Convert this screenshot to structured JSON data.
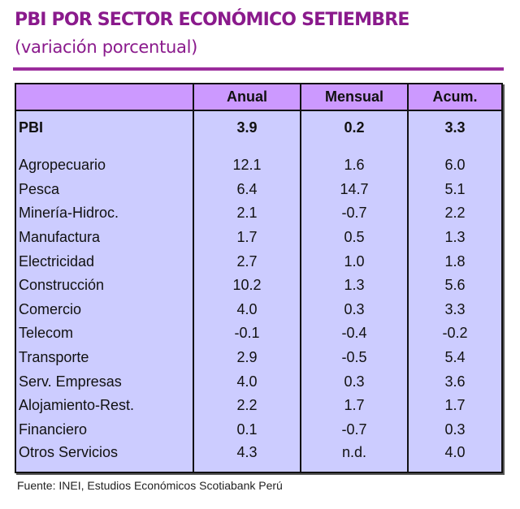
{
  "title": "PBI POR SECTOR ECONÓMICO SETIEMBRE",
  "subtitle": "(variación porcentual)",
  "table": {
    "headers": [
      "",
      "Anual",
      "Mensual",
      "Acum."
    ],
    "total": {
      "label": "PBI",
      "values": [
        "3.9",
        "0.2",
        "3.3"
      ]
    },
    "rows": [
      {
        "label": "Agropecuario",
        "values": [
          "12.1",
          "1.6",
          "6.0"
        ]
      },
      {
        "label": "Pesca",
        "values": [
          "6.4",
          "14.7",
          "5.1"
        ]
      },
      {
        "label": "Minería-Hidroc.",
        "values": [
          "2.1",
          "-0.7",
          "2.2"
        ]
      },
      {
        "label": "Manufactura",
        "values": [
          "1.7",
          "0.5",
          "1.3"
        ]
      },
      {
        "label": "Electricidad",
        "values": [
          "2.7",
          "1.0",
          "1.8"
        ]
      },
      {
        "label": "Construcción",
        "values": [
          "10.2",
          "1.3",
          "5.6"
        ]
      },
      {
        "label": "Comercio",
        "values": [
          "4.0",
          "0.3",
          "3.3"
        ]
      },
      {
        "label": "Telecom",
        "values": [
          "-0.1",
          "-0.4",
          "-0.2"
        ]
      },
      {
        "label": "Transporte",
        "values": [
          "2.9",
          "-0.5",
          "5.4"
        ]
      },
      {
        "label": "Serv. Empresas",
        "values": [
          "4.0",
          "0.3",
          "3.6"
        ]
      },
      {
        "label": "Alojamiento-Rest.",
        "values": [
          "2.2",
          "1.7",
          "1.7"
        ]
      },
      {
        "label": "Financiero",
        "values": [
          "0.1",
          "-0.7",
          "0.3"
        ]
      },
      {
        "label": "Otros Servicios",
        "values": [
          "4.3",
          "n.d.",
          "4.0"
        ]
      }
    ]
  },
  "footer": "Fuente: INEI, Estudios Económicos Scotiabank Perú",
  "colors": {
    "title": "#8a1a8c",
    "header_bg": "#cc99ff",
    "body_bg": "#ccccff"
  }
}
